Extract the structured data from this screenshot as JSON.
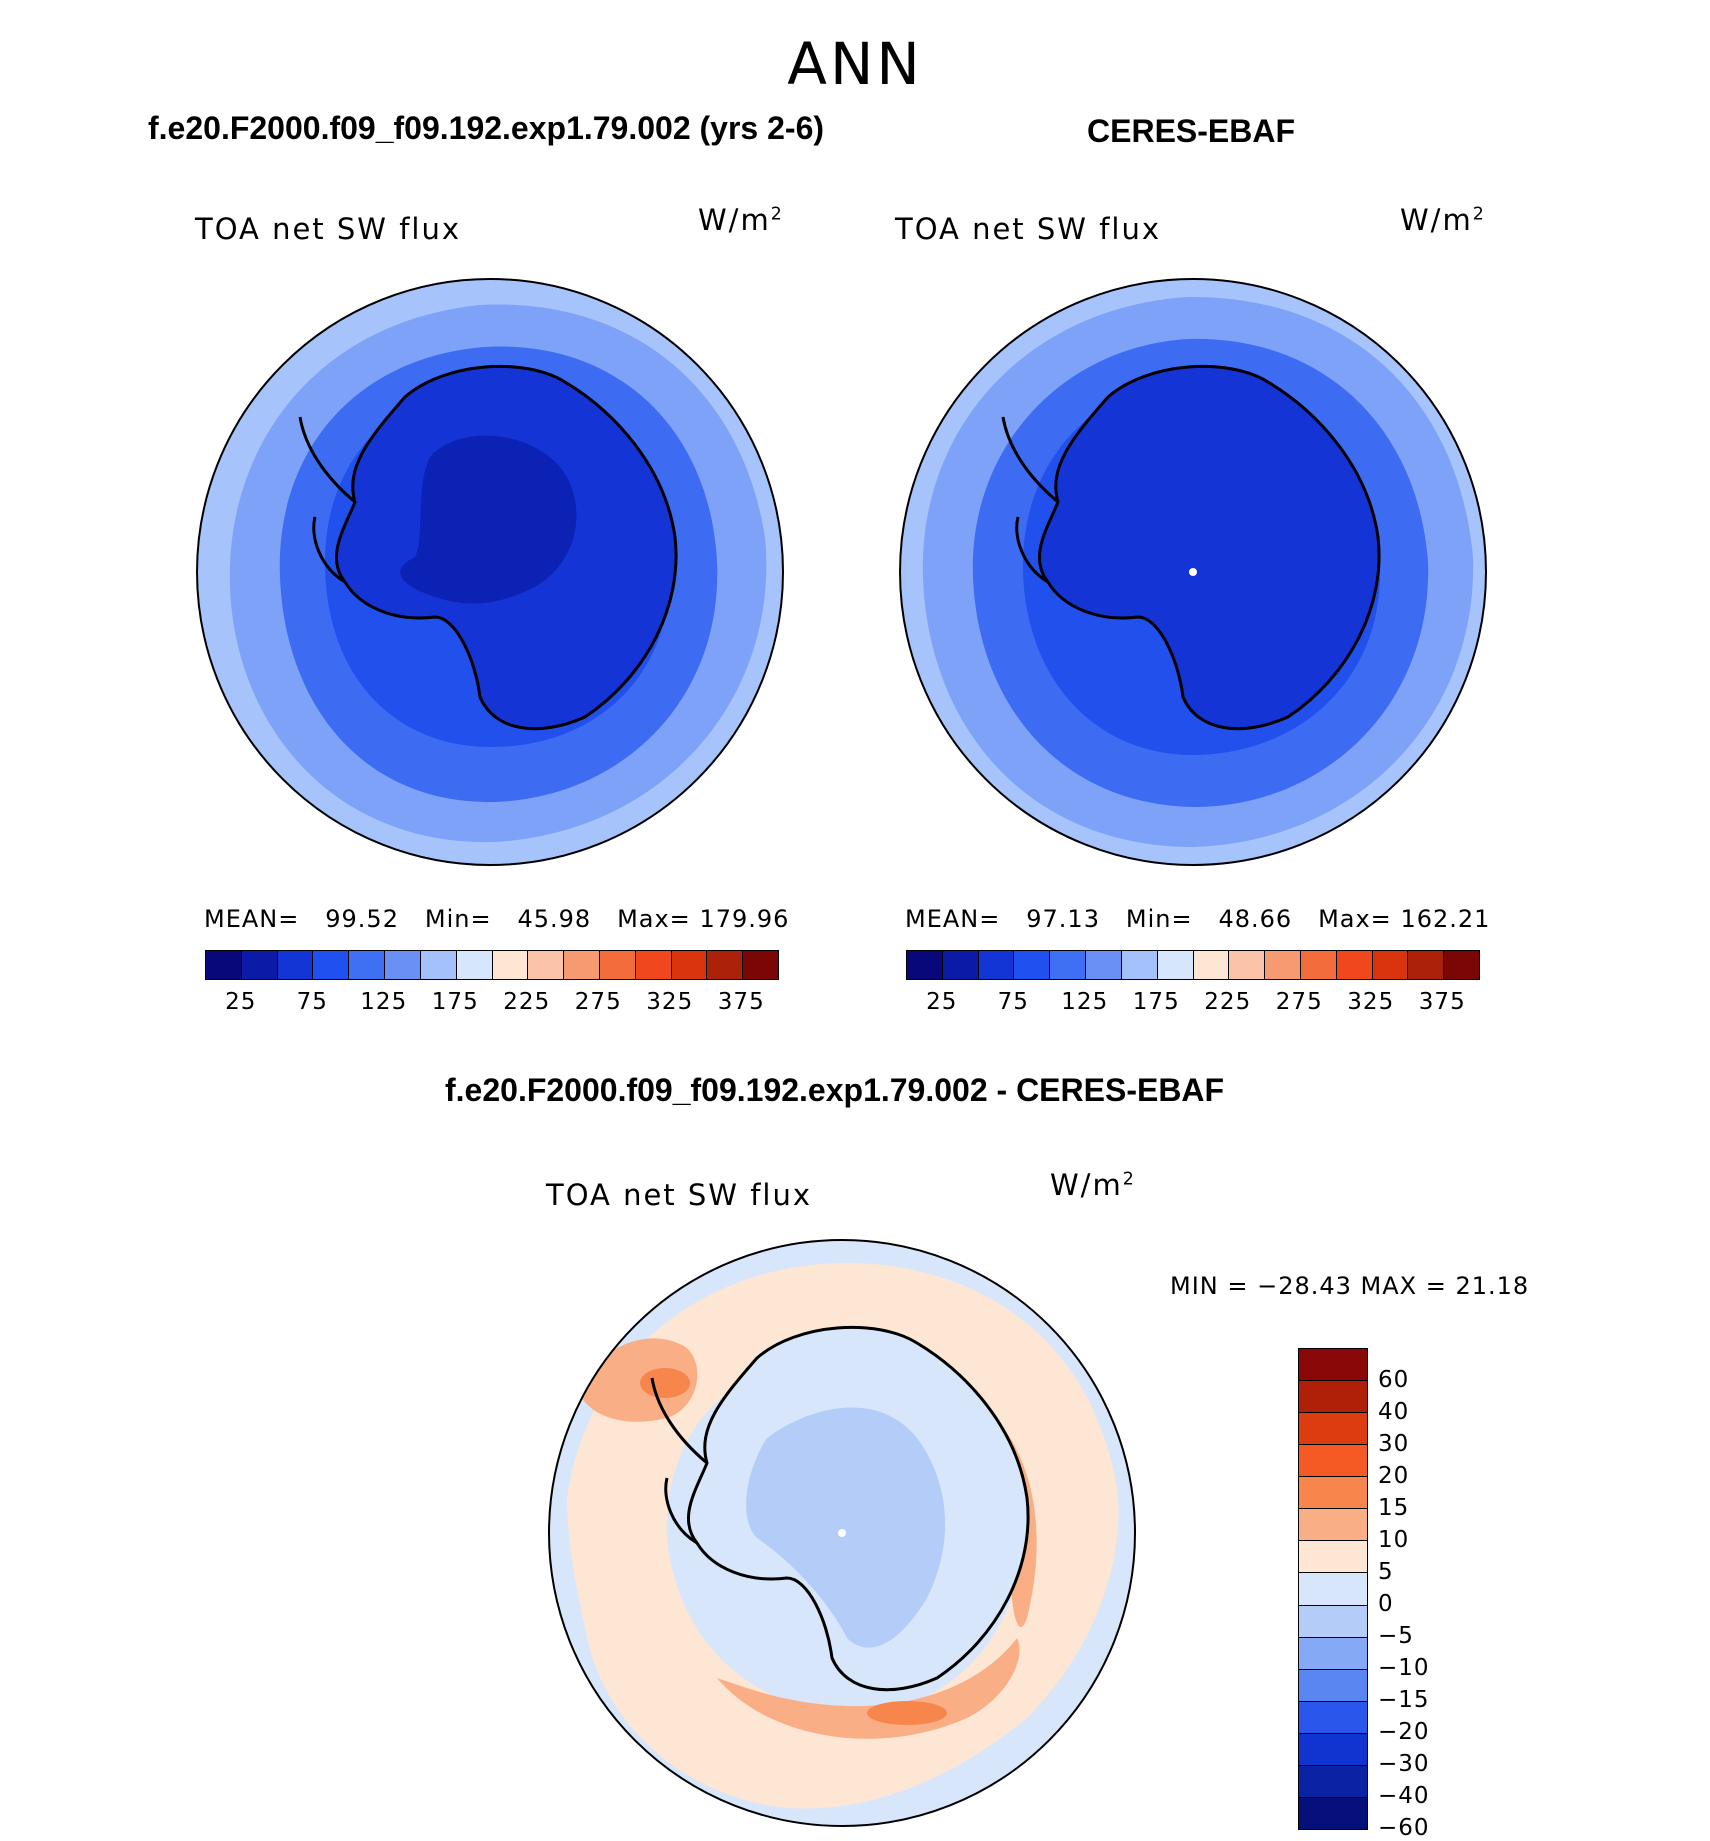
{
  "season": "ANN",
  "panels": {
    "model": {
      "title": "f.e20.F2000.f09_f09.192.exp1.79.002 (yrs 2-6)",
      "variable": "TOA net SW flux",
      "units": "W/m",
      "units_sup": "2",
      "stats": {
        "mean_label": "MEAN=",
        "mean": "99.52",
        "min_label": "Min=",
        "min": "45.98",
        "max_label": "Max=",
        "max": "179.96"
      }
    },
    "obs": {
      "title": "CERES-EBAF",
      "variable": "TOA net SW flux",
      "units": "W/m",
      "units_sup": "2",
      "stats": {
        "mean_label": "MEAN=",
        "mean": "97.13",
        "min_label": "Min=",
        "min": "48.66",
        "max_label": "Max=",
        "max": "162.21"
      }
    },
    "diff": {
      "title": "f.e20.F2000.f09_f09.192.exp1.79.002 - CERES-EBAF",
      "variable": "TOA net SW flux",
      "units": "W/m",
      "units_sup": "2",
      "stats_text": "MIN = −28.43 MAX =   21.18"
    }
  },
  "colorbar_abs": {
    "colors": [
      "#08087a",
      "#0c1aa8",
      "#1335d6",
      "#2050f0",
      "#3f6ff2",
      "#6a90f6",
      "#a4c1fb",
      "#d6e6fc",
      "#fde6d4",
      "#fbc4a8",
      "#f69a72",
      "#f26c3c",
      "#f0481c",
      "#d8350f",
      "#ac2109",
      "#7a0606"
    ],
    "tick_labels": [
      "25",
      "75",
      "125",
      "175",
      "225",
      "275",
      "325",
      "375"
    ]
  },
  "colorbar_diff": {
    "colors_top_to_bottom": [
      "#8a0808",
      "#b02008",
      "#dd3c10",
      "#f65a24",
      "#f7864c",
      "#f9ae86",
      "#fde6d4",
      "#d7e6fb",
      "#b4cdf8",
      "#86a9f5",
      "#5a86f2",
      "#2a56ec",
      "#1133d0",
      "#0a22a4",
      "#06107a"
    ],
    "tick_labels": [
      "60",
      "40",
      "30",
      "20",
      "15",
      "10",
      "5",
      "0",
      "−5",
      "−10",
      "−15",
      "−20",
      "−30",
      "−40",
      "−60"
    ]
  },
  "map_colors": {
    "outer_ring": "#a6c3fb",
    "ring_2": "#7da2f7",
    "ring_3": "#3d6cf2",
    "ring_4": "#2250ec",
    "continent": "#1434d6",
    "plateau": "#0c22b4",
    "coast": "#000000",
    "diff_base": "#d7e6fb",
    "diff_pos_light": "#fde6d4",
    "diff_pos_mid": "#f9ae86",
    "diff_pos_strong": "#f7864c",
    "diff_neg_light": "#b4cdf8",
    "diff_neg_mid": "#86a9f5"
  }
}
